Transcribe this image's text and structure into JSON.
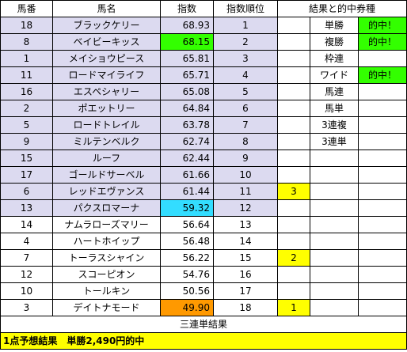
{
  "headers": [
    "馬番",
    "馬名",
    "指数",
    "指数順位",
    "結果と的中券種"
  ],
  "rows": [
    {
      "num": "18",
      "name": "ブラックケリー",
      "score": "68.93",
      "rank": "1",
      "res": "",
      "bet": "単勝",
      "hit": "的中！",
      "shade": true,
      "score_bg": "",
      "res_bg": "",
      "hit_bg": "#33ff00"
    },
    {
      "num": "8",
      "name": "ベイビーキッス",
      "score": "68.15",
      "rank": "2",
      "res": "",
      "bet": "複勝",
      "hit": "的中！",
      "shade": true,
      "score_bg": "#33ff00",
      "res_bg": "",
      "hit_bg": "#33ff00"
    },
    {
      "num": "1",
      "name": "メイショウピース",
      "score": "65.81",
      "rank": "3",
      "res": "",
      "bet": "枠連",
      "hit": "",
      "shade": true,
      "score_bg": "",
      "res_bg": "",
      "hit_bg": ""
    },
    {
      "num": "11",
      "name": "ロードマイライフ",
      "score": "65.71",
      "rank": "4",
      "res": "",
      "bet": "ワイド",
      "hit": "的中！",
      "shade": true,
      "score_bg": "",
      "res_bg": "",
      "hit_bg": "#33ff00"
    },
    {
      "num": "16",
      "name": "エスペシャリー",
      "score": "65.08",
      "rank": "5",
      "res": "",
      "bet": "馬連",
      "hit": "",
      "shade": true,
      "score_bg": "",
      "res_bg": "",
      "hit_bg": ""
    },
    {
      "num": "2",
      "name": "ポエットリー",
      "score": "64.84",
      "rank": "6",
      "res": "",
      "bet": "馬単",
      "hit": "",
      "shade": true,
      "score_bg": "",
      "res_bg": "",
      "hit_bg": ""
    },
    {
      "num": "5",
      "name": "ロードトレイル",
      "score": "63.78",
      "rank": "7",
      "res": "",
      "bet": "3連複",
      "hit": "",
      "shade": true,
      "score_bg": "",
      "res_bg": "",
      "hit_bg": ""
    },
    {
      "num": "9",
      "name": "ミルテンベルク",
      "score": "62.74",
      "rank": "8",
      "res": "",
      "bet": "3連単",
      "hit": "",
      "shade": true,
      "score_bg": "",
      "res_bg": "",
      "hit_bg": ""
    },
    {
      "num": "15",
      "name": "ルーフ",
      "score": "62.44",
      "rank": "9",
      "res": "",
      "bet": "",
      "hit": "",
      "shade": true,
      "score_bg": "",
      "res_bg": "",
      "hit_bg": ""
    },
    {
      "num": "17",
      "name": "ゴールドサーベル",
      "score": "61.66",
      "rank": "10",
      "res": "",
      "bet": "",
      "hit": "",
      "shade": true,
      "score_bg": "",
      "res_bg": "",
      "hit_bg": ""
    },
    {
      "num": "6",
      "name": "レッドエヴァンス",
      "score": "61.44",
      "rank": "11",
      "res": "3",
      "bet": "",
      "hit": "",
      "shade": true,
      "score_bg": "",
      "res_bg": "#ffff00",
      "hit_bg": ""
    },
    {
      "num": "13",
      "name": "パクスロマーナ",
      "score": "59.32",
      "rank": "12",
      "res": "",
      "bet": "",
      "hit": "",
      "shade": true,
      "score_bg": "#33ddff",
      "res_bg": "",
      "hit_bg": ""
    },
    {
      "num": "14",
      "name": "ナムラローズマリー",
      "score": "56.64",
      "rank": "13",
      "res": "",
      "bet": "",
      "hit": "",
      "shade": false,
      "score_bg": "",
      "res_bg": "",
      "hit_bg": ""
    },
    {
      "num": "4",
      "name": "ハートホイップ",
      "score": "56.48",
      "rank": "14",
      "res": "",
      "bet": "",
      "hit": "",
      "shade": false,
      "score_bg": "",
      "res_bg": "",
      "hit_bg": ""
    },
    {
      "num": "7",
      "name": "トーラスシャイン",
      "score": "56.22",
      "rank": "15",
      "res": "2",
      "bet": "",
      "hit": "",
      "shade": false,
      "score_bg": "",
      "res_bg": "#ffff00",
      "hit_bg": ""
    },
    {
      "num": "12",
      "name": "スコーピオン",
      "score": "54.76",
      "rank": "16",
      "res": "",
      "bet": "",
      "hit": "",
      "shade": false,
      "score_bg": "",
      "res_bg": "",
      "hit_bg": ""
    },
    {
      "num": "10",
      "name": "トールキン",
      "score": "50.56",
      "rank": "17",
      "res": "",
      "bet": "",
      "hit": "",
      "shade": false,
      "score_bg": "",
      "res_bg": "",
      "hit_bg": ""
    },
    {
      "num": "3",
      "name": "デイトナモード",
      "score": "49.90",
      "rank": "18",
      "res": "1",
      "bet": "",
      "hit": "",
      "shade": false,
      "score_bg": "#ff9900",
      "res_bg": "#ffff00",
      "hit_bg": ""
    }
  ],
  "footer": "三連単結果",
  "summary": "1点予想結果　単勝2,490円的中",
  "colors": {
    "shade": "#dcdaf0",
    "summary_bg": "#ffff00"
  }
}
